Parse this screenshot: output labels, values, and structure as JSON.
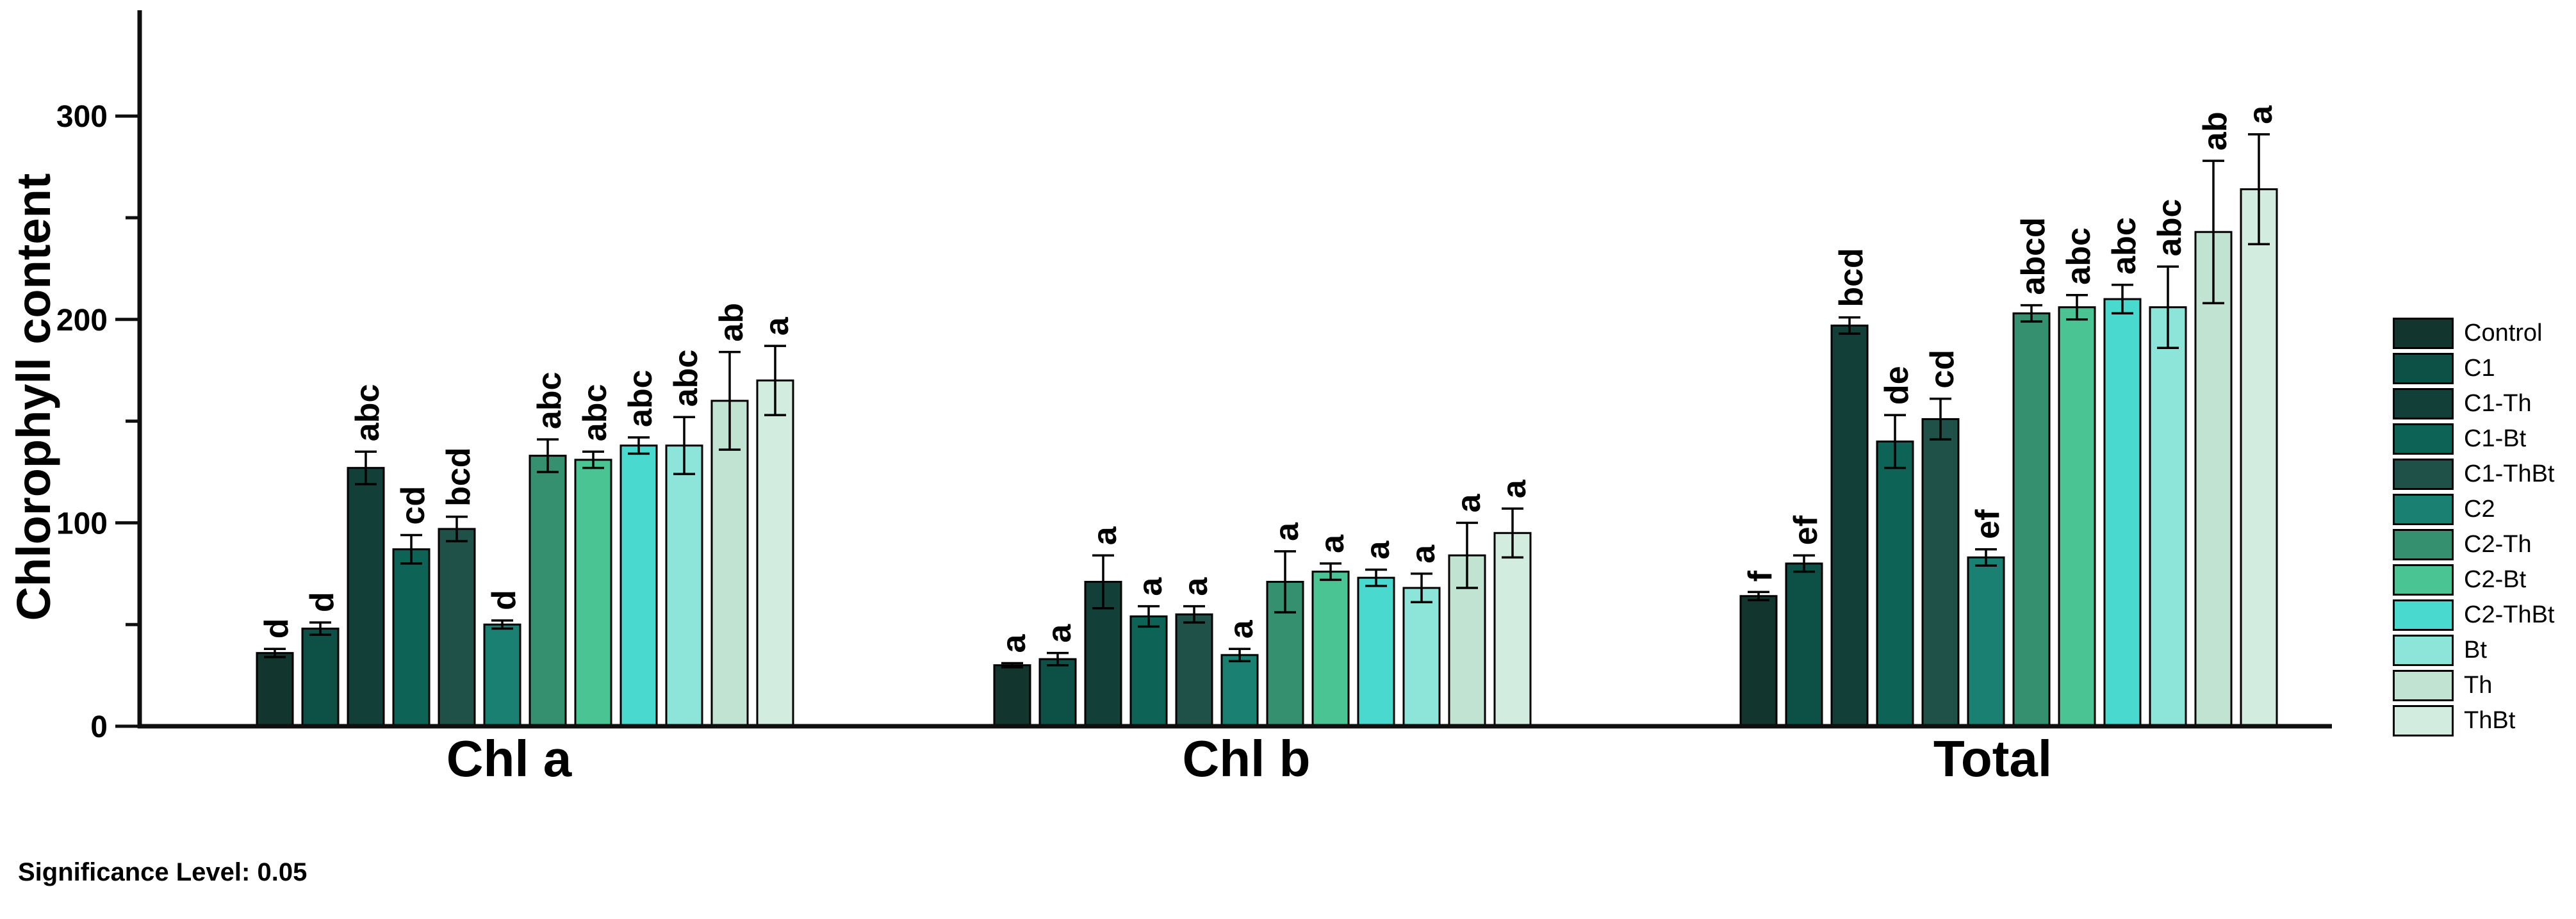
{
  "axis": {
    "y_ticks": [
      0,
      100,
      200,
      300
    ],
    "y_minor_ticks": [
      50,
      150,
      250
    ],
    "ylim": [
      0,
      350
    ]
  },
  "footer": {
    "significance_note": "Significance Level: 0.05"
  },
  "chart_data": {
    "type": "bar",
    "ylabel": "Chlorophyll content",
    "xlabel": "",
    "ylim": [
      0,
      350
    ],
    "grid": false,
    "legend_position": "right",
    "error_bars": true,
    "categories": [
      "Chl a",
      "Chl b",
      "Total"
    ],
    "series": [
      {
        "name": "Control",
        "color": "#12362E",
        "values": [
          36,
          30,
          64
        ],
        "errors": [
          2,
          1,
          2
        ],
        "letters": [
          "d",
          "a",
          "f"
        ]
      },
      {
        "name": "C1",
        "color": "#0D5045",
        "values": [
          48,
          33,
          80
        ],
        "errors": [
          3,
          3,
          4
        ],
        "letters": [
          "d",
          "a",
          "ef"
        ]
      },
      {
        "name": "C1-Th",
        "color": "#123F37",
        "values": [
          127,
          71,
          197
        ],
        "errors": [
          8,
          13,
          4
        ],
        "letters": [
          "abc",
          "a",
          "bcd"
        ]
      },
      {
        "name": "C1-Bt",
        "color": "#0D6356",
        "values": [
          87,
          54,
          140
        ],
        "errors": [
          7,
          5,
          13
        ],
        "letters": [
          "cd",
          "a",
          "de"
        ]
      },
      {
        "name": "C1-ThBt",
        "color": "#1F5148",
        "values": [
          97,
          55,
          151
        ],
        "errors": [
          6,
          4,
          10
        ],
        "letters": [
          "bcd",
          "a",
          "cd"
        ]
      },
      {
        "name": "C2",
        "color": "#1A8172",
        "values": [
          50,
          35,
          83
        ],
        "errors": [
          2,
          3,
          4
        ],
        "letters": [
          "d",
          "a",
          "ef"
        ]
      },
      {
        "name": "C2-Th",
        "color": "#35906F",
        "values": [
          133,
          71,
          203
        ],
        "errors": [
          8,
          15,
          4
        ],
        "letters": [
          "abc",
          "a",
          "abcd"
        ]
      },
      {
        "name": "C2-Bt",
        "color": "#4BC493",
        "values": [
          131,
          76,
          206
        ],
        "errors": [
          4,
          4,
          6
        ],
        "letters": [
          "abc",
          "a",
          "abc"
        ]
      },
      {
        "name": "C2-ThBt",
        "color": "#49D9CE",
        "values": [
          138,
          73,
          210
        ],
        "errors": [
          4,
          4,
          7
        ],
        "letters": [
          "abc",
          "a",
          "abc"
        ]
      },
      {
        "name": "Bt",
        "color": "#8DE5DA",
        "values": [
          138,
          68,
          206
        ],
        "errors": [
          14,
          7,
          20
        ],
        "letters": [
          "abc",
          "a",
          "abc"
        ]
      },
      {
        "name": "Th",
        "color": "#C0E3D2",
        "values": [
          160,
          84,
          243
        ],
        "errors": [
          24,
          16,
          35
        ],
        "letters": [
          "ab",
          "a",
          "ab"
        ]
      },
      {
        "name": "ThBt",
        "color": "#D2ECDF",
        "values": [
          170,
          95,
          264
        ],
        "errors": [
          17,
          12,
          27
        ],
        "letters": [
          "a",
          "a",
          "a"
        ]
      }
    ]
  }
}
